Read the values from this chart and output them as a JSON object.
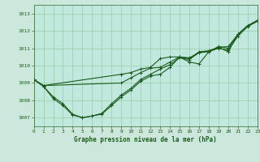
{
  "title": "Graphe pression niveau de la mer (hPa)",
  "bg_color": "#cce8dc",
  "plot_bg_color": "#c0e8dc",
  "line_color": "#1a5c1a",
  "grid_color": "#99ccaa",
  "xlim": [
    0,
    23
  ],
  "ylim": [
    1006.5,
    1013.5
  ],
  "yticks": [
    1007,
    1008,
    1009,
    1010,
    1011,
    1012,
    1013
  ],
  "xticks": [
    0,
    1,
    2,
    3,
    4,
    5,
    6,
    7,
    8,
    9,
    10,
    11,
    12,
    13,
    14,
    15,
    16,
    17,
    18,
    19,
    20,
    21,
    22,
    23
  ],
  "series1_x": [
    0,
    1,
    2,
    3,
    4,
    5,
    6,
    7,
    8,
    9,
    10,
    11,
    12,
    13,
    14,
    15,
    16,
    17,
    18,
    19,
    20,
    21,
    22,
    23
  ],
  "series1_y": [
    1009.2,
    1008.8,
    1008.2,
    1007.8,
    1007.2,
    1007.0,
    1007.1,
    1007.2,
    1007.7,
    1008.2,
    1008.6,
    1009.1,
    1009.4,
    1009.5,
    1009.9,
    1010.5,
    1010.2,
    1010.1,
    1010.8,
    1011.1,
    1011.0,
    1011.8,
    1012.3,
    1012.6
  ],
  "series2_x": [
    0,
    1,
    2,
    3,
    4,
    5,
    6,
    7,
    8,
    9,
    10,
    11,
    12,
    13,
    14,
    15,
    16,
    17,
    18,
    19,
    20,
    21,
    22,
    23
  ],
  "series2_y": [
    1009.2,
    1008.8,
    1008.1,
    1007.7,
    1007.15,
    1007.0,
    1007.1,
    1007.25,
    1007.8,
    1008.3,
    1008.7,
    1009.2,
    1009.5,
    1009.8,
    1010.05,
    1010.45,
    1010.35,
    1010.75,
    1010.85,
    1011.05,
    1010.8,
    1011.8,
    1012.3,
    1012.6
  ],
  "series3_x": [
    0,
    1,
    9,
    10,
    11,
    12,
    13,
    14,
    15,
    16,
    17,
    18,
    19,
    20,
    21,
    22,
    23
  ],
  "series3_y": [
    1009.2,
    1008.85,
    1009.5,
    1009.6,
    1009.8,
    1009.9,
    1010.4,
    1010.5,
    1010.5,
    1010.45,
    1010.75,
    1010.8,
    1011.0,
    1010.9,
    1011.7,
    1012.25,
    1012.55
  ],
  "series4_x": [
    0,
    1,
    9,
    10,
    11,
    12,
    13,
    14,
    15,
    16,
    17,
    18,
    19,
    20,
    21,
    22,
    23
  ],
  "series4_y": [
    1009.2,
    1008.85,
    1009.0,
    1009.3,
    1009.6,
    1009.85,
    1009.9,
    1010.2,
    1010.5,
    1010.4,
    1010.8,
    1010.85,
    1011.05,
    1011.1,
    1011.8,
    1012.3,
    1012.6
  ]
}
